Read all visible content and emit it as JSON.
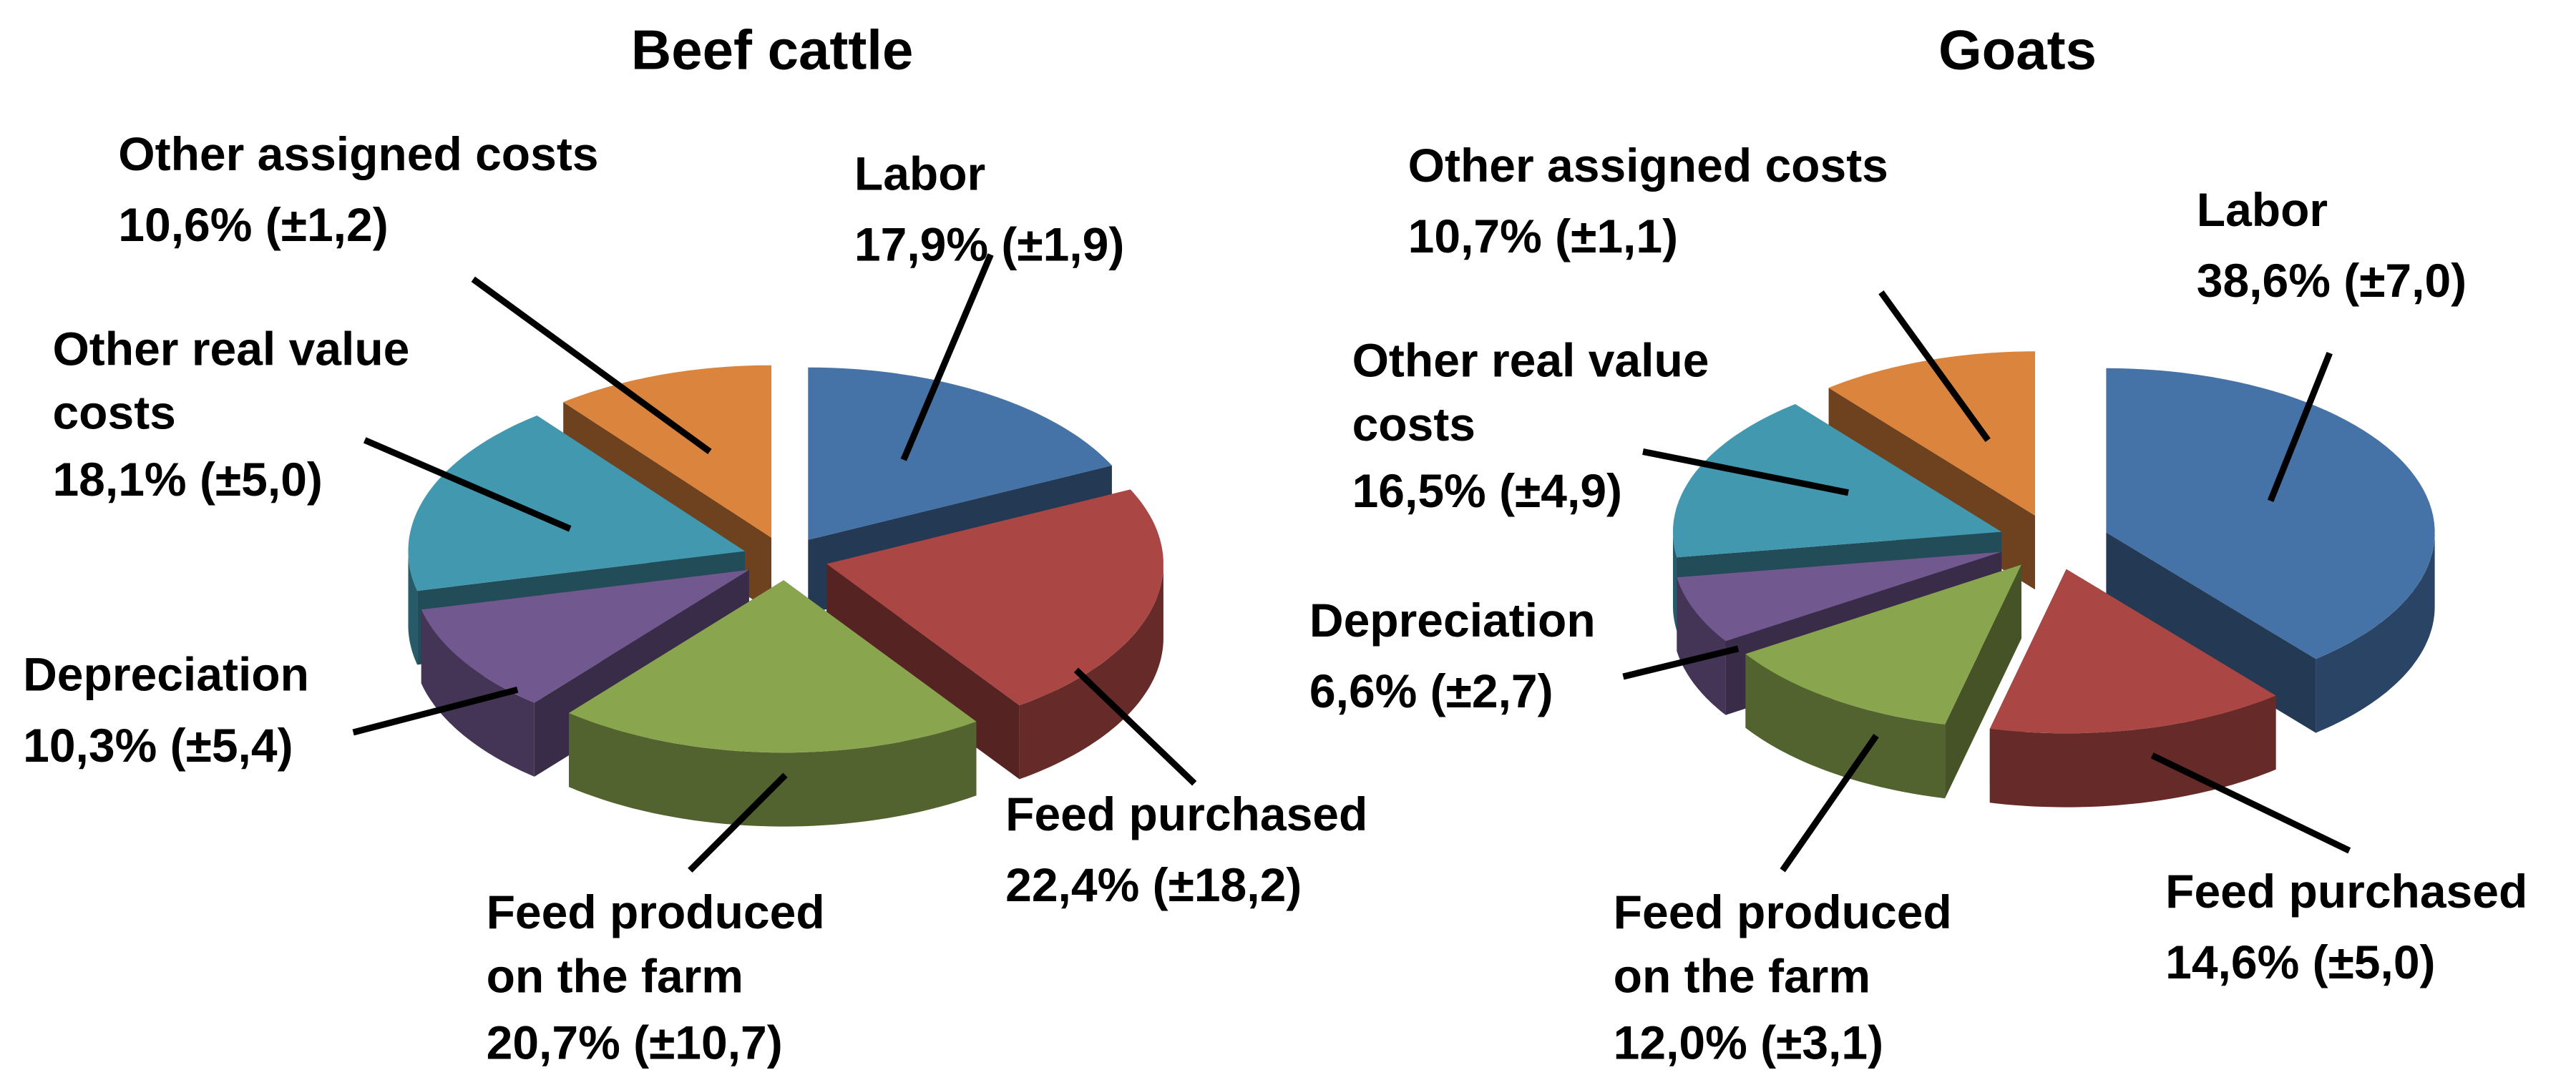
{
  "chart_data": [
    {
      "type": "pie",
      "title": "Beef cattle",
      "categories": [
        "Labor",
        "Feed purchased",
        "Feed produced on the farm",
        "Depreciation",
        "Other real value costs",
        "Other assigned costs"
      ],
      "values": [
        17.9,
        22.4,
        20.7,
        10.3,
        18.1,
        10.6
      ],
      "value_labels": [
        "17,9% (±1,9)",
        "22,4% (±18,2)",
        "20,7% (±10,7)",
        "10,3% (±5,4)",
        "18,1% (±5,0)",
        "10,6% (±1,2)"
      ],
      "colors": [
        "#4572a7",
        "#aa4643",
        "#89a54e",
        "#71588f",
        "#4198af",
        "#db843d"
      ]
    },
    {
      "type": "pie",
      "title": "Goats",
      "categories": [
        "Labor",
        "Feed purchased",
        "Feed produced on the farm",
        "Depreciation",
        "Other real value costs",
        "Other assigned costs"
      ],
      "values": [
        38.6,
        14.6,
        12.0,
        6.6,
        16.5,
        10.7
      ],
      "value_labels": [
        "38,6% (±7,0)",
        "14,6% (±5,0)",
        "12,0% (±3,1)",
        "6,6% (±2,7)",
        "16,5% (±4,9)",
        "10,7% (±1,1)"
      ],
      "colors": [
        "#4572a7",
        "#aa4643",
        "#89a54e",
        "#71588f",
        "#4198af",
        "#db843d"
      ]
    }
  ]
}
